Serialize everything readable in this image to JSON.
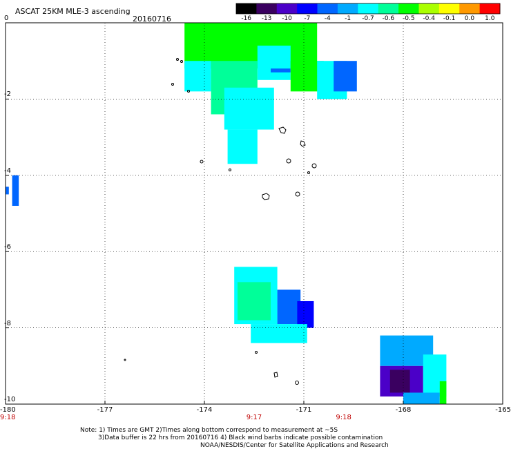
{
  "header": {
    "title": "ASCAT 25KM MLE-3 ascending",
    "date": "20160716"
  },
  "colorbar": {
    "labels": [
      "-16",
      "-13",
      "-10",
      "-7",
      "-4",
      "-1",
      "-0.7",
      "-0.6",
      "-0.5",
      "-0.4",
      "-0.1",
      "0.0",
      "1.0"
    ],
    "colors": [
      "#000000",
      "#3a0060",
      "#4b00c8",
      "#0000ff",
      "#0066ff",
      "#00aaff",
      "#00ffff",
      "#00ff99",
      "#00ff00",
      "#aaff00",
      "#ffff00",
      "#ff9900",
      "#ff0000"
    ]
  },
  "chart_data": {
    "type": "heatmap",
    "xlim": [
      -180,
      -165
    ],
    "ylim": [
      -10,
      0
    ],
    "x_ticks": [
      "-180",
      "-177",
      "-174",
      "-171",
      "-168",
      "-165"
    ],
    "x_tick_values": [
      -180,
      -177,
      -174,
      -171,
      -168,
      -165
    ],
    "y_ticks": [
      "0",
      "-2",
      "-4",
      "-6",
      "-8",
      "-10"
    ],
    "y_tick_values": [
      0,
      -2,
      -4,
      -6,
      -8,
      -10
    ],
    "grid": true,
    "time_labels": [
      {
        "label": "9:18",
        "lon": -180
      },
      {
        "label": "9:17",
        "lon": -172.5
      },
      {
        "label": "9:18",
        "lon": -169.8
      }
    ],
    "cells": [
      {
        "lon0": -174.6,
        "lon1": -170.6,
        "lat0": 0,
        "lat1": -1.2,
        "value": -0.5
      },
      {
        "lon0": -174.6,
        "lon1": -173.8,
        "lat0": -1.0,
        "lat1": -1.8,
        "value": -0.7
      },
      {
        "lon0": -173.8,
        "lon1": -172.4,
        "lat0": -1.0,
        "lat1": -2.4,
        "value": -0.6
      },
      {
        "lon0": -173.4,
        "lon1": -171.9,
        "lat0": -1.7,
        "lat1": -2.8,
        "value": -0.7
      },
      {
        "lon0": -172.4,
        "lon1": -171.4,
        "lat0": -0.6,
        "lat1": -1.5,
        "value": -0.7
      },
      {
        "lon0": -172.0,
        "lon1": -171.4,
        "lat0": -1.2,
        "lat1": -1.3,
        "value": -4
      },
      {
        "lon0": -171.4,
        "lon1": -170.4,
        "lat0": -1.0,
        "lat1": -1.8,
        "value": -0.5
      },
      {
        "lon0": -170.6,
        "lon1": -169.7,
        "lat0": -1.0,
        "lat1": -2.0,
        "value": -0.7
      },
      {
        "lon0": -170.1,
        "lon1": -169.4,
        "lat0": -1.0,
        "lat1": -1.8,
        "value": -4
      },
      {
        "lon0": -173.3,
        "lon1": -172.4,
        "lat0": -2.8,
        "lat1": -3.7,
        "value": -0.7
      },
      {
        "lon0": -179.8,
        "lon1": -179.6,
        "lat0": -4.0,
        "lat1": -4.8,
        "value": -4
      },
      {
        "lon0": -180.0,
        "lon1": -179.9,
        "lat0": -4.3,
        "lat1": -4.5,
        "value": -4
      },
      {
        "lon0": -173.1,
        "lon1": -171.8,
        "lat0": -6.4,
        "lat1": -7.9,
        "value": -0.7
      },
      {
        "lon0": -173.0,
        "lon1": -172.0,
        "lat0": -6.8,
        "lat1": -7.8,
        "value": -0.6
      },
      {
        "lon0": -171.8,
        "lon1": -171.1,
        "lat0": -7.0,
        "lat1": -7.9,
        "value": -4
      },
      {
        "lon0": -171.2,
        "lon1": -170.7,
        "lat0": -7.3,
        "lat1": -8.0,
        "value": -7
      },
      {
        "lon0": -172.6,
        "lon1": -170.9,
        "lat0": -7.9,
        "lat1": -8.4,
        "value": -0.7
      },
      {
        "lon0": -168.7,
        "lon1": -167.1,
        "lat0": -8.2,
        "lat1": -9.0,
        "value": -1
      },
      {
        "lon0": -168.7,
        "lon1": -167.4,
        "lat0": -9.0,
        "lat1": -9.8,
        "value": -10
      },
      {
        "lon0": -168.4,
        "lon1": -167.8,
        "lat0": -9.1,
        "lat1": -9.7,
        "value": -13
      },
      {
        "lon0": -167.4,
        "lon1": -166.7,
        "lat0": -8.7,
        "lat1": -9.8,
        "value": -0.7
      },
      {
        "lon0": -168.0,
        "lon1": -166.9,
        "lat0": -9.7,
        "lat1": -10.0,
        "value": -1
      },
      {
        "lon0": -166.9,
        "lon1": -166.7,
        "lat0": -9.4,
        "lat1": -10.0,
        "value": -0.5
      }
    ]
  },
  "footer": {
    "note_line1": "Note: 1) Times are GMT 2)Times along bottom correspond to measurement at ~5S",
    "note_line2": "3)Data buffer is 22 hrs from 20160716 4) Black wind barbs indicate possible contamination",
    "credit": "NOAA/NESDIS/Center for Satellite Applications and Research"
  }
}
